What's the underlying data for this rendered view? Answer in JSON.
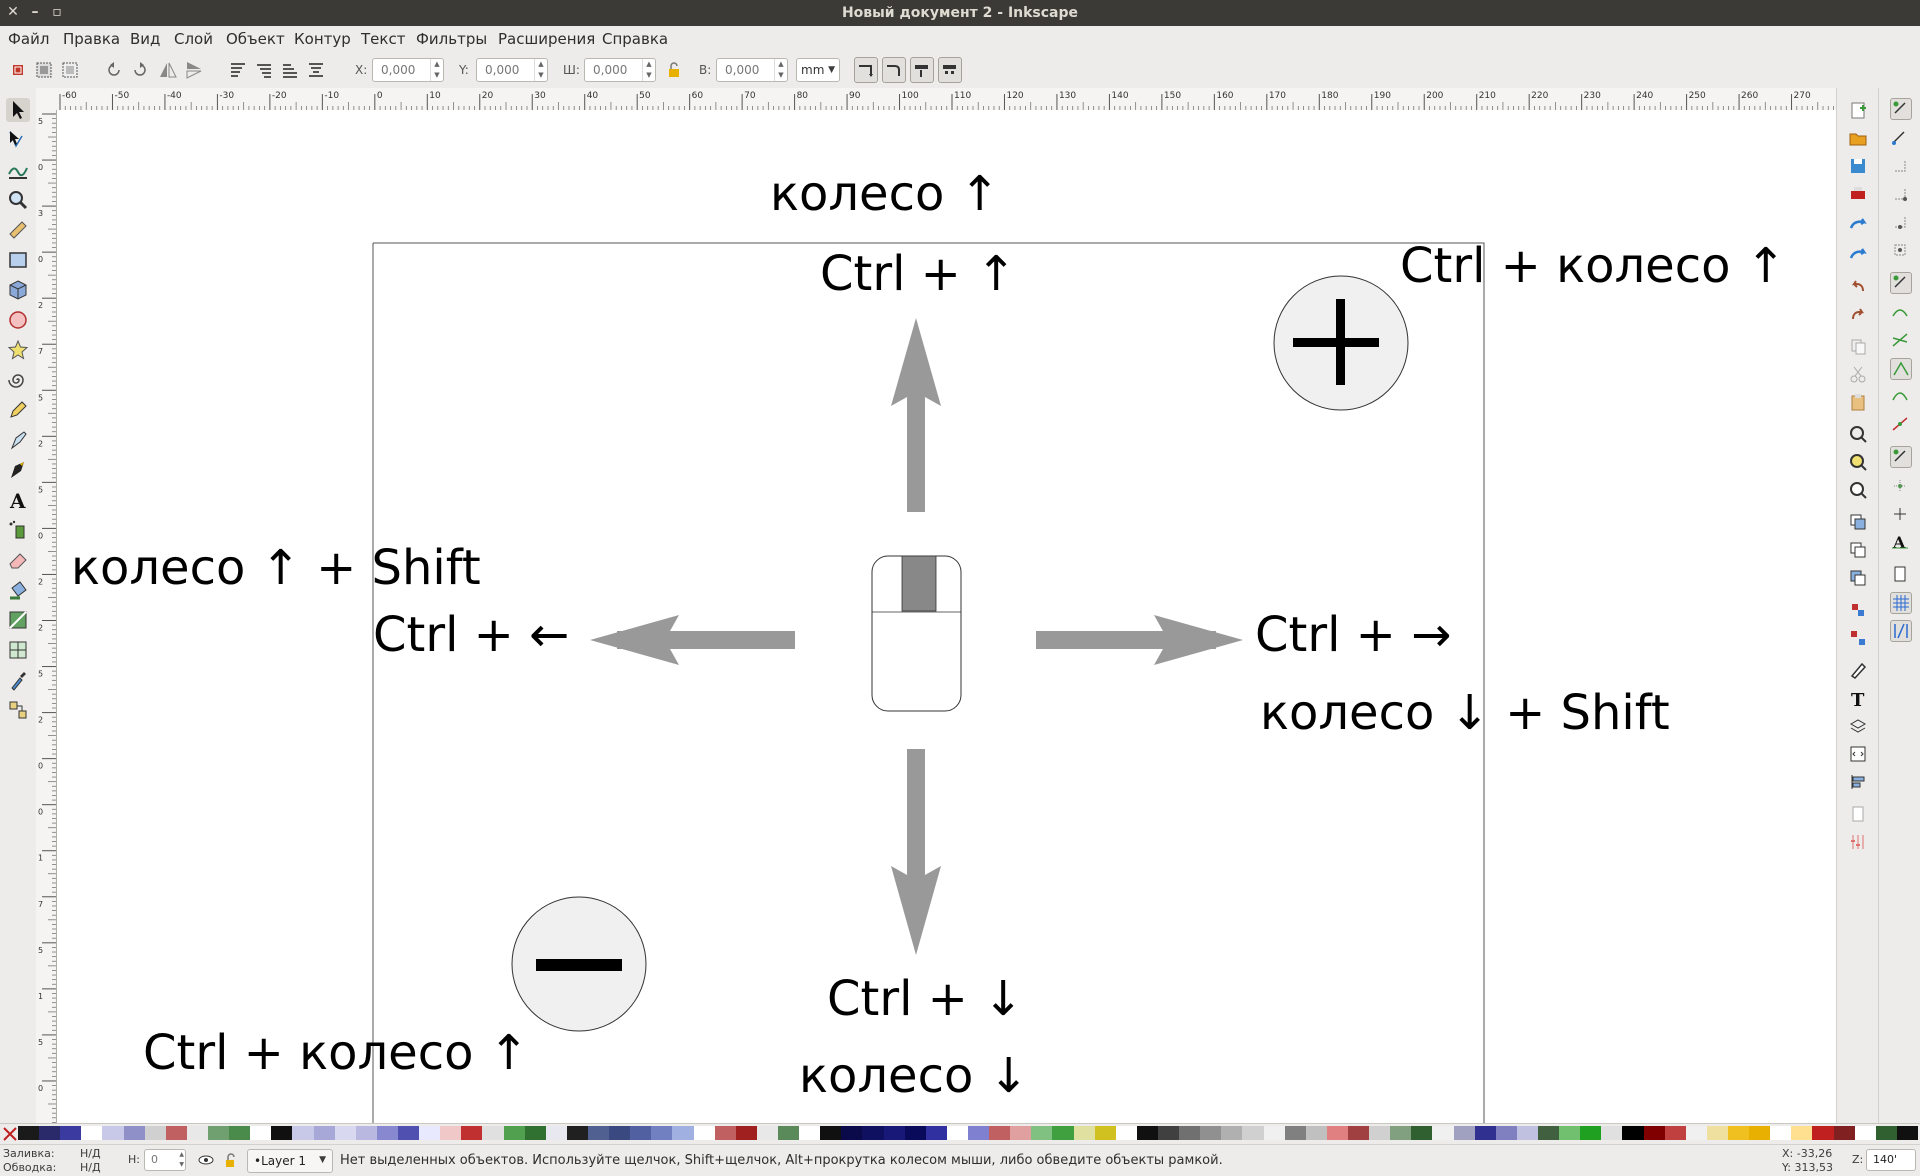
{
  "window": {
    "title": "Новый документ 2 - Inkscape",
    "close": "✕",
    "minimize": "–",
    "maximize": "▫"
  },
  "menu": [
    "Файл",
    "Правка",
    "Вид",
    "Слой",
    "Объект",
    "Контур",
    "Текст",
    "Фильтры",
    "Расширения",
    "Справка"
  ],
  "toolcontrols": {
    "x_label": "X:",
    "x_value": "0,000",
    "y_label": "Y:",
    "y_value": "0,000",
    "w_label": "Ш:",
    "w_value": "0,000",
    "h_label": "В:",
    "h_value": "0,000",
    "unit": "mm"
  },
  "ruler": {
    "h_labels": [
      "-60",
      "-50",
      "-40",
      "-30",
      "-20",
      "-10",
      "0",
      "10",
      "20",
      "30",
      "40",
      "50",
      "60",
      "70",
      "80",
      "90",
      "100",
      "110",
      "120",
      "130",
      "140",
      "150",
      "160",
      "170",
      "180",
      "190",
      "200",
      "210",
      "220",
      "230",
      "240",
      "250",
      "260",
      "270"
    ],
    "v_labels": [
      "5",
      "0",
      "3",
      "0",
      "2",
      "7",
      "5",
      "2",
      "5",
      "0",
      "2",
      "2",
      "5",
      "2",
      "0",
      "0",
      "1",
      "7",
      "5",
      "1",
      "5",
      "0"
    ]
  },
  "canvas": {
    "labels": {
      "wheel_up_top": "колесо ↑",
      "ctrl_up": "Ctrl + ↑",
      "ctrl_wheel_up_right": "Ctrl + колесо ↑",
      "wheel_up_shift": "колесо ↑ + Shift",
      "ctrl_left": "Ctrl + ←",
      "ctrl_right": "Ctrl + →",
      "wheel_down_shift": "колесо ↓ + Shift",
      "ctrl_down": "Ctrl + ↓",
      "wheel_down": "колесо ↓",
      "ctrl_wheel_up_bottom": "Ctrl + колесо ↑"
    },
    "zoom_in_symbol": "+",
    "zoom_out_symbol": "−",
    "arrow_color": "#999999",
    "circle_fill": "#f0f0f0"
  },
  "palette": {
    "colors": [
      "#1a1a1a",
      "#2a2a6a",
      "#3a3aa0",
      "#ffffff",
      "#c8c8e8",
      "#9090c8",
      "#d0d0d0",
      "#c06060",
      "#e8e8e8",
      "#70a070",
      "#4a8a4a",
      "#ffffff",
      "#101010",
      "#c8c8e8",
      "#a8a8d8",
      "#d8d8f0",
      "#b8b8e0",
      "#8888d0",
      "#5050b0",
      "#e8e8ff",
      "#f0c8c8",
      "#c03030",
      "#e0e0e0",
      "#50a050",
      "#307030",
      "#e8e8f0",
      "#202020",
      "#506090",
      "#3a4a80",
      "#5060a0",
      "#7080c0",
      "#a0b0e0",
      "#ffffff",
      "#c06060",
      "#a02020",
      "#e8e8e8",
      "#5a8a5a",
      "#ffffff",
      "#101010",
      "#0a0a4a",
      "#101060",
      "#181878",
      "#0a0a5a",
      "#3030a0",
      "#ffffff",
      "#8080d0",
      "#c06060",
      "#e0a0a0",
      "#80c080",
      "#40a040",
      "#e0e0a0",
      "#d0c020",
      "#ffffff",
      "#101010",
      "#404040",
      "#707070",
      "#909090",
      "#b0b0b0",
      "#d0d0d0",
      "#f0f0f0",
      "#808080",
      "#c0c0c0",
      "#e08080",
      "#a04040",
      "#d0d0d0",
      "#80a080",
      "#306030",
      "#f0f0f0",
      "#a0a0c0",
      "#303090",
      "#8080c0",
      "#c0c0e0",
      "#406040",
      "#70c070",
      "#20a020",
      "#e0e0e0",
      "#000000",
      "#800000",
      "#c04040",
      "#f0f0f0",
      "#f0e0a0",
      "#f0c020",
      "#e8b000",
      "#ffffff",
      "#ffe090",
      "#c02020",
      "#802020",
      "#ffffff",
      "#306030",
      "#101010"
    ]
  },
  "status": {
    "fill_label": "Заливка:",
    "fill_value": "Н/Д",
    "stroke_label": "Обводка:",
    "stroke_value": "Н/Д",
    "h_label": "Н:",
    "h_value": "0",
    "layer": "•Layer 1",
    "message": "Нет выделенных объектов. Используйте щелчок, Shift+щелчок, Alt+прокрутка колесом мыши, либо обведите объекты рамкой.",
    "x_coord": "X:  -33,26",
    "y_coord": "Y:  313,53",
    "z_label": "Z:",
    "zoom": "140'"
  }
}
